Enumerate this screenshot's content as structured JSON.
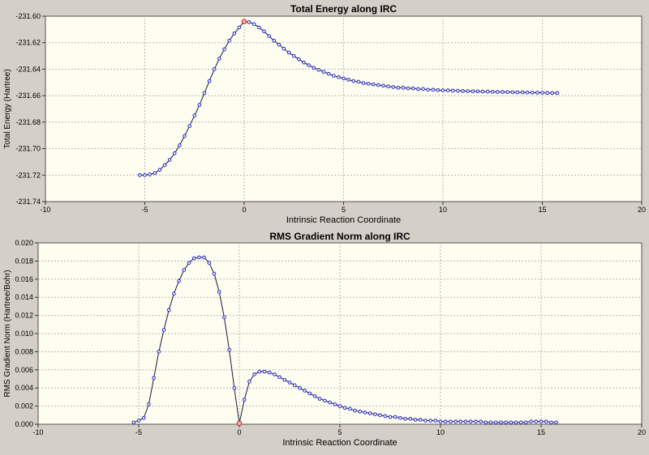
{
  "chart_data": [
    {
      "type": "line",
      "title": "Total Energy along IRC",
      "xlabel": "Intrinsic Reaction Coordinate",
      "ylabel": "Total Energy (Hartree)",
      "xlim": [
        -10,
        20
      ],
      "ylim": [
        -231.74,
        -231.6
      ],
      "xticks": [
        "-10",
        "-5",
        "0",
        "5",
        "10",
        "15",
        "20"
      ],
      "yticks": [
        "-231.60",
        "-231.62",
        "-231.64",
        "-231.66",
        "-231.68",
        "-231.70",
        "-231.72",
        "-231.74"
      ],
      "grid": true,
      "highlight_index": 21,
      "series": [
        {
          "x": [
            -5.25,
            -5.0,
            -4.75,
            -4.5,
            -4.25,
            -4.0,
            -3.75,
            -3.5,
            -3.25,
            -3.0,
            -2.75,
            -2.5,
            -2.25,
            -2.0,
            -1.75,
            -1.5,
            -1.25,
            -1.0,
            -0.75,
            -0.5,
            -0.25,
            0.0,
            0.25,
            0.5,
            0.75,
            1.0,
            1.25,
            1.5,
            1.75,
            2.0,
            2.25,
            2.5,
            2.75,
            3.0,
            3.25,
            3.5,
            3.75,
            4.0,
            4.25,
            4.5,
            4.75,
            5.0,
            5.25,
            5.5,
            5.75,
            6.0,
            6.25,
            6.5,
            6.75,
            7.0,
            7.25,
            7.5,
            7.75,
            8.0,
            8.25,
            8.5,
            8.75,
            9.0,
            9.25,
            9.5,
            9.75,
            10.0,
            10.25,
            10.5,
            10.75,
            11.0,
            11.25,
            11.5,
            11.75,
            12.0,
            12.25,
            12.5,
            12.75,
            13.0,
            13.25,
            13.5,
            13.75,
            14.0,
            14.25,
            14.5,
            14.75,
            15.0,
            15.25,
            15.5,
            15.75
          ],
          "y": [
            -231.72,
            -231.72,
            -231.7195,
            -231.7185,
            -231.716,
            -231.7125,
            -231.7085,
            -231.7035,
            -231.6975,
            -231.6905,
            -231.683,
            -231.675,
            -231.667,
            -231.658,
            -231.649,
            -231.64,
            -231.632,
            -231.625,
            -231.6185,
            -231.613,
            -231.6085,
            -231.604,
            -231.6045,
            -231.606,
            -231.6085,
            -231.6115,
            -231.615,
            -231.6185,
            -231.6215,
            -231.6245,
            -231.6275,
            -231.63,
            -231.6325,
            -231.635,
            -231.637,
            -231.639,
            -231.6405,
            -231.642,
            -231.6435,
            -231.645,
            -231.646,
            -231.647,
            -231.648,
            -231.649,
            -231.6495,
            -231.6505,
            -231.651,
            -231.6515,
            -231.652,
            -231.6525,
            -231.653,
            -231.6535,
            -231.654,
            -231.654,
            -231.6545,
            -231.6545,
            -231.655,
            -231.655,
            -231.6555,
            -231.6555,
            -231.6558,
            -231.656,
            -231.656,
            -231.6562,
            -231.6563,
            -231.6565,
            -231.6566,
            -231.6567,
            -231.6568,
            -231.6569,
            -231.657,
            -231.6571,
            -231.6572,
            -231.6572,
            -231.6573,
            -231.6574,
            -231.6575,
            -231.6575,
            -231.6576,
            -231.6577,
            -231.6578,
            -231.6578,
            -231.6579,
            -231.658,
            -231.658
          ]
        }
      ]
    },
    {
      "type": "line",
      "title": "RMS Gradient Norm along IRC",
      "xlabel": "Intrinsic Reaction Coordinate",
      "ylabel": "RMS Gradient Norm (Hartree/Bohr)",
      "xlim": [
        -10,
        20
      ],
      "ylim": [
        0.0,
        0.02
      ],
      "xticks": [
        "-10",
        "-5",
        "0",
        "5",
        "10",
        "15",
        "20"
      ],
      "yticks": [
        "0.020",
        "0.018",
        "0.016",
        "0.014",
        "0.012",
        "0.010",
        "0.008",
        "0.006",
        "0.004",
        "0.002",
        "0.000"
      ],
      "grid": true,
      "highlight_index": 21,
      "series": [
        {
          "x": [
            -5.25,
            -5.0,
            -4.75,
            -4.5,
            -4.25,
            -4.0,
            -3.75,
            -3.5,
            -3.25,
            -3.0,
            -2.75,
            -2.5,
            -2.25,
            -2.0,
            -1.75,
            -1.5,
            -1.25,
            -1.0,
            -0.75,
            -0.5,
            -0.25,
            0.0,
            0.25,
            0.5,
            0.75,
            1.0,
            1.25,
            1.5,
            1.75,
            2.0,
            2.25,
            2.5,
            2.75,
            3.0,
            3.25,
            3.5,
            3.75,
            4.0,
            4.25,
            4.5,
            4.75,
            5.0,
            5.25,
            5.5,
            5.75,
            6.0,
            6.25,
            6.5,
            6.75,
            7.0,
            7.25,
            7.5,
            7.75,
            8.0,
            8.25,
            8.5,
            8.75,
            9.0,
            9.25,
            9.5,
            9.75,
            10.0,
            10.25,
            10.5,
            10.75,
            11.0,
            11.25,
            11.5,
            11.75,
            12.0,
            12.25,
            12.5,
            12.75,
            13.0,
            13.25,
            13.5,
            13.75,
            14.0,
            14.25,
            14.5,
            14.75,
            15.0,
            15.25,
            15.5,
            15.75
          ],
          "y": [
            0.0002,
            0.0004,
            0.0007,
            0.0022,
            0.0051,
            0.008,
            0.0104,
            0.0126,
            0.0144,
            0.0158,
            0.017,
            0.0178,
            0.0183,
            0.0184,
            0.0184,
            0.0178,
            0.0166,
            0.0146,
            0.0118,
            0.0082,
            0.004,
            0.0001,
            0.0027,
            0.0047,
            0.0055,
            0.0058,
            0.0058,
            0.0057,
            0.0055,
            0.0052,
            0.0049,
            0.0046,
            0.0043,
            0.004,
            0.0037,
            0.0034,
            0.0031,
            0.0028,
            0.0026,
            0.0024,
            0.0022,
            0.002,
            0.0018,
            0.0017,
            0.0015,
            0.0014,
            0.0013,
            0.0012,
            0.0011,
            0.001,
            0.0009,
            0.0008,
            0.0008,
            0.0007,
            0.0006,
            0.0006,
            0.0005,
            0.0005,
            0.0004,
            0.0004,
            0.0004,
            0.0003,
            0.0003,
            0.0003,
            0.0003,
            0.0003,
            0.0003,
            0.0003,
            0.0003,
            0.0003,
            0.0002,
            0.0002,
            0.0002,
            0.0002,
            0.0002,
            0.0002,
            0.0002,
            0.0002,
            0.0002,
            0.0003,
            0.0003,
            0.0003,
            0.0003,
            0.0002,
            0.0002
          ]
        }
      ]
    }
  ],
  "colors": {
    "background": "#d4d0c8",
    "plot_bg": "#fdfdf0",
    "grid": "#b8b8b8",
    "line": "#1a1a3a",
    "marker": "#2020c8",
    "highlight": "#d02020"
  }
}
